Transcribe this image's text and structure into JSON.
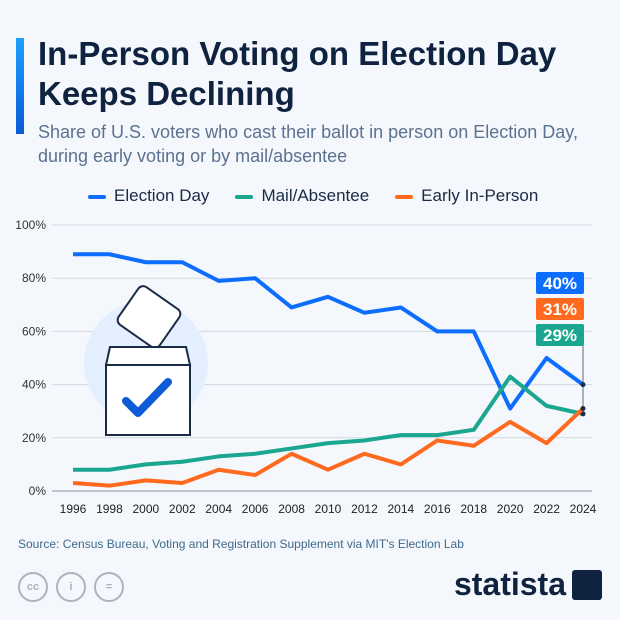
{
  "title": "In-Person Voting on Election Day Keeps Declining",
  "subtitle": "Share of U.S. voters who cast their ballot in person on Election Day, during early voting or by mail/absentee",
  "source": "Source: Census Bureau, Voting and Registration Supplement via MIT's Election Lab",
  "logo": "statista",
  "chart_data": {
    "type": "line",
    "x": [
      1996,
      1998,
      2000,
      2002,
      2004,
      2006,
      2008,
      2010,
      2012,
      2014,
      2016,
      2018,
      2020,
      2022,
      2024
    ],
    "ylim": [
      0,
      100
    ],
    "yticks": [
      "0%",
      "20%",
      "40%",
      "60%",
      "80%",
      "100%"
    ],
    "grid": true,
    "legend": "top",
    "series": [
      {
        "name": "Election Day",
        "color": "#0d6efd",
        "values": [
          89,
          89,
          86,
          86,
          79,
          80,
          69,
          73,
          67,
          69,
          60,
          60,
          31,
          50,
          40
        ],
        "end_label": "40%"
      },
      {
        "name": "Mail/Absentee",
        "color": "#1aa68f",
        "values": [
          8,
          8,
          10,
          11,
          13,
          14,
          16,
          18,
          19,
          21,
          21,
          23,
          43,
          32,
          29
        ],
        "end_label": "29%"
      },
      {
        "name": "Early In-Person",
        "color": "#ff6a1f",
        "values": [
          3,
          2,
          4,
          3,
          8,
          6,
          14,
          8,
          14,
          10,
          19,
          17,
          26,
          18,
          31
        ],
        "end_label": "31%"
      }
    ]
  }
}
